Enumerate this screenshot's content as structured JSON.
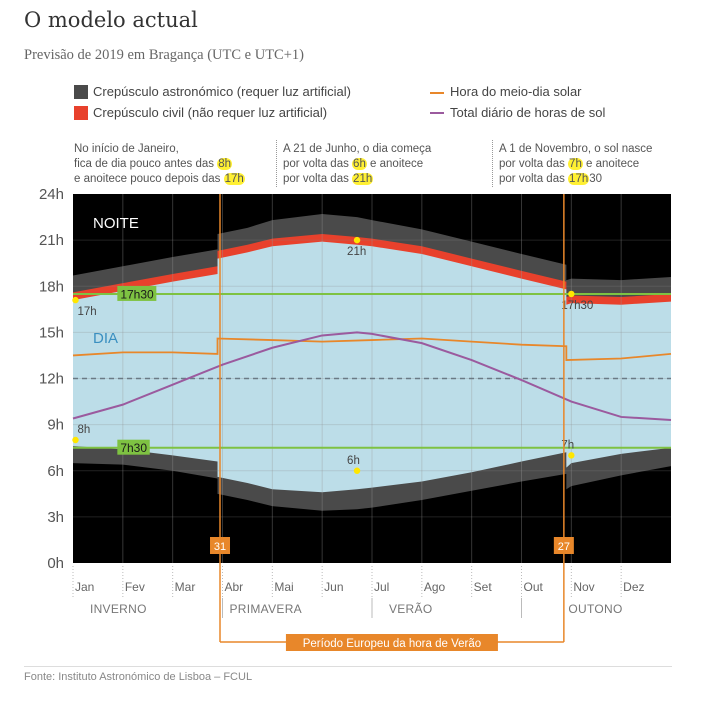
{
  "title": "O modelo actual",
  "subtitle": "Previsão de 2019 em Bragança (UTC e UTC+1)",
  "legend": {
    "astro": "Crepúsculo astronómico (requer luz artificial)",
    "civil": "Crepúsculo civil (não requer luz artificial)",
    "noon": "Hora do meio-dia solar",
    "daylight": "Total diário de horas de sol"
  },
  "notes": [
    {
      "l1": "No início de Janeiro,",
      "l2a": "fica de dia pouco antes das ",
      "l2h": "8h",
      "l3a": "e anoitece pouco depois das ",
      "l3h": "17h",
      "l3b": ""
    },
    {
      "l1": "A 21 de Junho, o dia começa",
      "l2a": "por volta das ",
      "l2h": "6h",
      "l2b": " e anoitece",
      "l3a": "por volta das ",
      "l3h": "21h",
      "l3b": ""
    },
    {
      "l1": "A 1 de Novembro, o sol nasce",
      "l2a": "por volta das ",
      "l2h": "7h",
      "l2b": " e anoitece",
      "l3a": "por volta das ",
      "l3h": "17h",
      "l3b": "30"
    }
  ],
  "colors": {
    "night": "#000000",
    "astro": "#4a4a4a",
    "civil": "#e8412c",
    "day": "#bcdde8",
    "noon": "#e8872a",
    "daylight": "#9b5a9e",
    "green": "#7ec242",
    "orange": "#e8872a",
    "marker": "#ffe600"
  },
  "source": "Fonte: Instituto Astronómico de Lisboa – FCUL",
  "chart_data": {
    "type": "area",
    "ylim": [
      0,
      24
    ],
    "y_ticks": [
      "0h",
      "3h",
      "6h",
      "9h",
      "12h",
      "15h",
      "18h",
      "21h",
      "24h"
    ],
    "months": [
      "Jan",
      "Fev",
      "Mar",
      "Abr",
      "Mai",
      "Jun",
      "Jul",
      "Ago",
      "Set",
      "Out",
      "Nov",
      "Dez"
    ],
    "seasons": [
      "INVERNO",
      "PRIMAVERA",
      "VERÃO",
      "OUTONO"
    ],
    "region_labels": {
      "night": "NOITE",
      "day": "DIA"
    },
    "x_month_index": [
      0,
      1,
      2,
      2.9,
      2.9,
      3.5,
      4,
      5,
      5.7,
      6,
      7,
      8,
      9,
      9.9,
      9.9,
      10,
      11,
      12
    ],
    "series": {
      "astro_start": [
        6.5,
        6.4,
        6.0,
        5.5,
        4.5,
        4.1,
        3.7,
        3.4,
        3.5,
        3.6,
        4.1,
        4.7,
        5.3,
        5.8,
        4.8,
        5.0,
        5.7,
        6.3
      ],
      "civil_start": [
        7.9,
        7.7,
        7.3,
        6.9,
        5.9,
        5.6,
        5.2,
        5.0,
        5.2,
        5.3,
        5.7,
        6.3,
        7.0,
        7.5,
        6.5,
        6.8,
        7.5,
        7.9
      ],
      "sunrise": [
        7.6,
        7.4,
        7.0,
        6.6,
        5.6,
        5.2,
        4.8,
        4.6,
        4.8,
        4.9,
        5.3,
        5.9,
        6.6,
        7.2,
        6.2,
        6.5,
        7.1,
        7.5
      ],
      "sunset": [
        17.1,
        17.7,
        18.3,
        18.8,
        19.8,
        20.2,
        20.6,
        20.9,
        20.7,
        20.6,
        20.1,
        19.3,
        18.5,
        17.8,
        16.8,
        16.9,
        16.8,
        17.0
      ],
      "civil_end": [
        17.6,
        18.2,
        18.8,
        19.3,
        20.3,
        20.7,
        21.1,
        21.4,
        21.2,
        21.1,
        20.6,
        19.8,
        19.0,
        18.3,
        17.3,
        17.4,
        17.3,
        17.5
      ],
      "astro_end": [
        18.7,
        19.3,
        19.9,
        20.4,
        21.4,
        21.8,
        22.3,
        22.7,
        22.5,
        22.3,
        21.7,
        20.9,
        20.1,
        19.4,
        18.4,
        18.5,
        18.4,
        18.6
      ],
      "noon_x": [
        0,
        1,
        2,
        2.9,
        2.9,
        4,
        5,
        6,
        7,
        8,
        9,
        9.9,
        9.9,
        11,
        12
      ],
      "noon": [
        13.5,
        13.7,
        13.7,
        13.6,
        14.6,
        14.5,
        14.4,
        14.5,
        14.6,
        14.4,
        14.2,
        14.1,
        13.2,
        13.3,
        13.6
      ],
      "daylight_x": [
        0,
        1,
        2,
        3,
        4,
        5,
        5.7,
        6,
        7,
        8,
        9,
        10,
        11,
        12
      ],
      "daylight": [
        9.4,
        10.3,
        11.6,
        12.9,
        14.0,
        14.8,
        15.0,
        14.9,
        14.3,
        13.2,
        11.9,
        10.5,
        9.5,
        9.3
      ]
    },
    "reference_lines": [
      {
        "value": 17.5,
        "label": "17h30"
      },
      {
        "value": 7.5,
        "label": "7h30"
      },
      {
        "value": 12,
        "label": ""
      }
    ],
    "dst": {
      "start_label": "31",
      "end_label": "27",
      "start_x": 2.95,
      "end_x": 9.85,
      "period_label": "Período Europeu da hora de Verão"
    },
    "markers": [
      {
        "x": 0.05,
        "y": 17.1,
        "label": "17h"
      },
      {
        "x": 0.05,
        "y": 8.0,
        "label": "8h"
      },
      {
        "x": 5.7,
        "y": 21.0,
        "label": "21h"
      },
      {
        "x": 5.7,
        "y": 6.0,
        "label": "6h"
      },
      {
        "x": 10.0,
        "y": 17.5,
        "label": "17h30"
      },
      {
        "x": 10.0,
        "y": 7.0,
        "label": "7h"
      }
    ]
  }
}
